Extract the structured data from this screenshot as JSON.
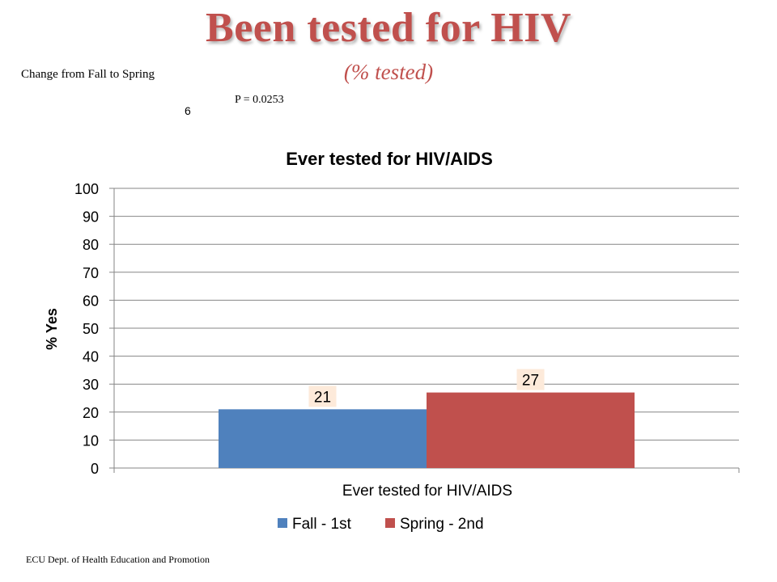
{
  "slide": {
    "title": "Been tested for HIV",
    "subtitle": "(% tested)",
    "change_note": "Change  from Fall to Spring",
    "p_value": "P = 0.0253",
    "slide_number": "6",
    "footer": "ECU Dept. of Health Education and Promotion"
  },
  "colors": {
    "title": "#c0504d",
    "fall": "#4f81bd",
    "spring": "#c0504d",
    "label_box": "#fdeada",
    "grid": "#868686"
  },
  "chart_data": {
    "type": "bar",
    "title": "Ever tested for HIV/AIDS",
    "xlabel": "",
    "ylabel": "% Yes",
    "categories": [
      "Ever tested for HIV/AIDS"
    ],
    "series": [
      {
        "name": "Fall - 1st",
        "values": [
          21
        ]
      },
      {
        "name": "Spring - 2nd",
        "values": [
          27
        ]
      }
    ],
    "ylim": [
      0,
      100
    ],
    "yticks": [
      0,
      10,
      20,
      30,
      40,
      50,
      60,
      70,
      80,
      90,
      100
    ],
    "grid": true,
    "legend": "bottom",
    "data_labels": true
  }
}
